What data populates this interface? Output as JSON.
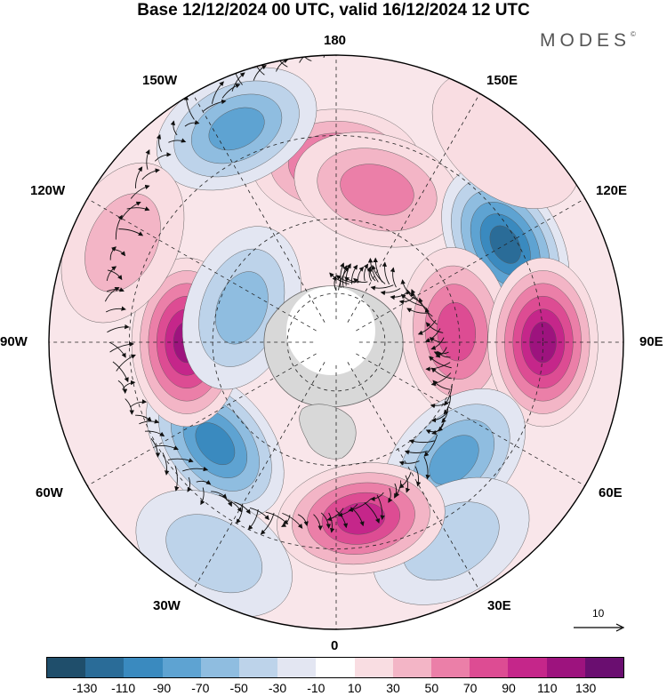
{
  "title": "Base 12/12/2024 00 UTC, valid 16/12/2024 12 UTC",
  "brand": "MODES",
  "brand_mark": "©",
  "longitudes": {
    "top": "180",
    "bottom": "0",
    "left": "90W",
    "right": "90E",
    "nw": "150W",
    "ne": "150E",
    "wnw": "120W",
    "ene": "120E",
    "wsw": "60W",
    "ese": "60E",
    "sw": "30W",
    "se": "30E"
  },
  "reference_vector": "10",
  "colorbar": {
    "colors": [
      "#1f4e6b",
      "#2a6c98",
      "#3a8abf",
      "#5ea3d2",
      "#8fbde0",
      "#bdd3ea",
      "#e3e6f2",
      "#ffffff",
      "#f9dde2",
      "#f3b5c6",
      "#eb7fa8",
      "#dd4c93",
      "#c5268a",
      "#9d137e",
      "#6a0e70"
    ],
    "ticks": [
      "-130",
      "-110",
      "-90",
      "-70",
      "-50",
      "-30",
      "-10",
      "10",
      "30",
      "50",
      "70",
      "90",
      "110",
      "130"
    ]
  },
  "anomalies": [
    {
      "lon": 180,
      "r": 0.62,
      "value": 80
    },
    {
      "lon": 165,
      "r": 0.55,
      "value": 50
    },
    {
      "lon": 120,
      "r": 0.68,
      "value": -115
    },
    {
      "lon": 95,
      "r": 0.42,
      "value": 70
    },
    {
      "lon": 90,
      "r": 0.72,
      "value": 115
    },
    {
      "lon": 45,
      "r": 0.58,
      "value": -80
    },
    {
      "lon": 30,
      "r": 0.8,
      "value": -40
    },
    {
      "lon": 8,
      "r": 0.62,
      "value": 100
    },
    {
      "lon": -50,
      "r": 0.55,
      "value": -105
    },
    {
      "lon": -90,
      "r": 0.52,
      "value": 110
    },
    {
      "lon": -110,
      "r": 0.35,
      "value": -55
    },
    {
      "lon": -155,
      "r": 0.82,
      "value": -80
    },
    {
      "lon": -115,
      "r": 0.82,
      "value": 30
    },
    {
      "lon": -30,
      "r": 0.85,
      "value": -45
    },
    {
      "lon": 140,
      "r": 0.92,
      "value": 25
    }
  ]
}
